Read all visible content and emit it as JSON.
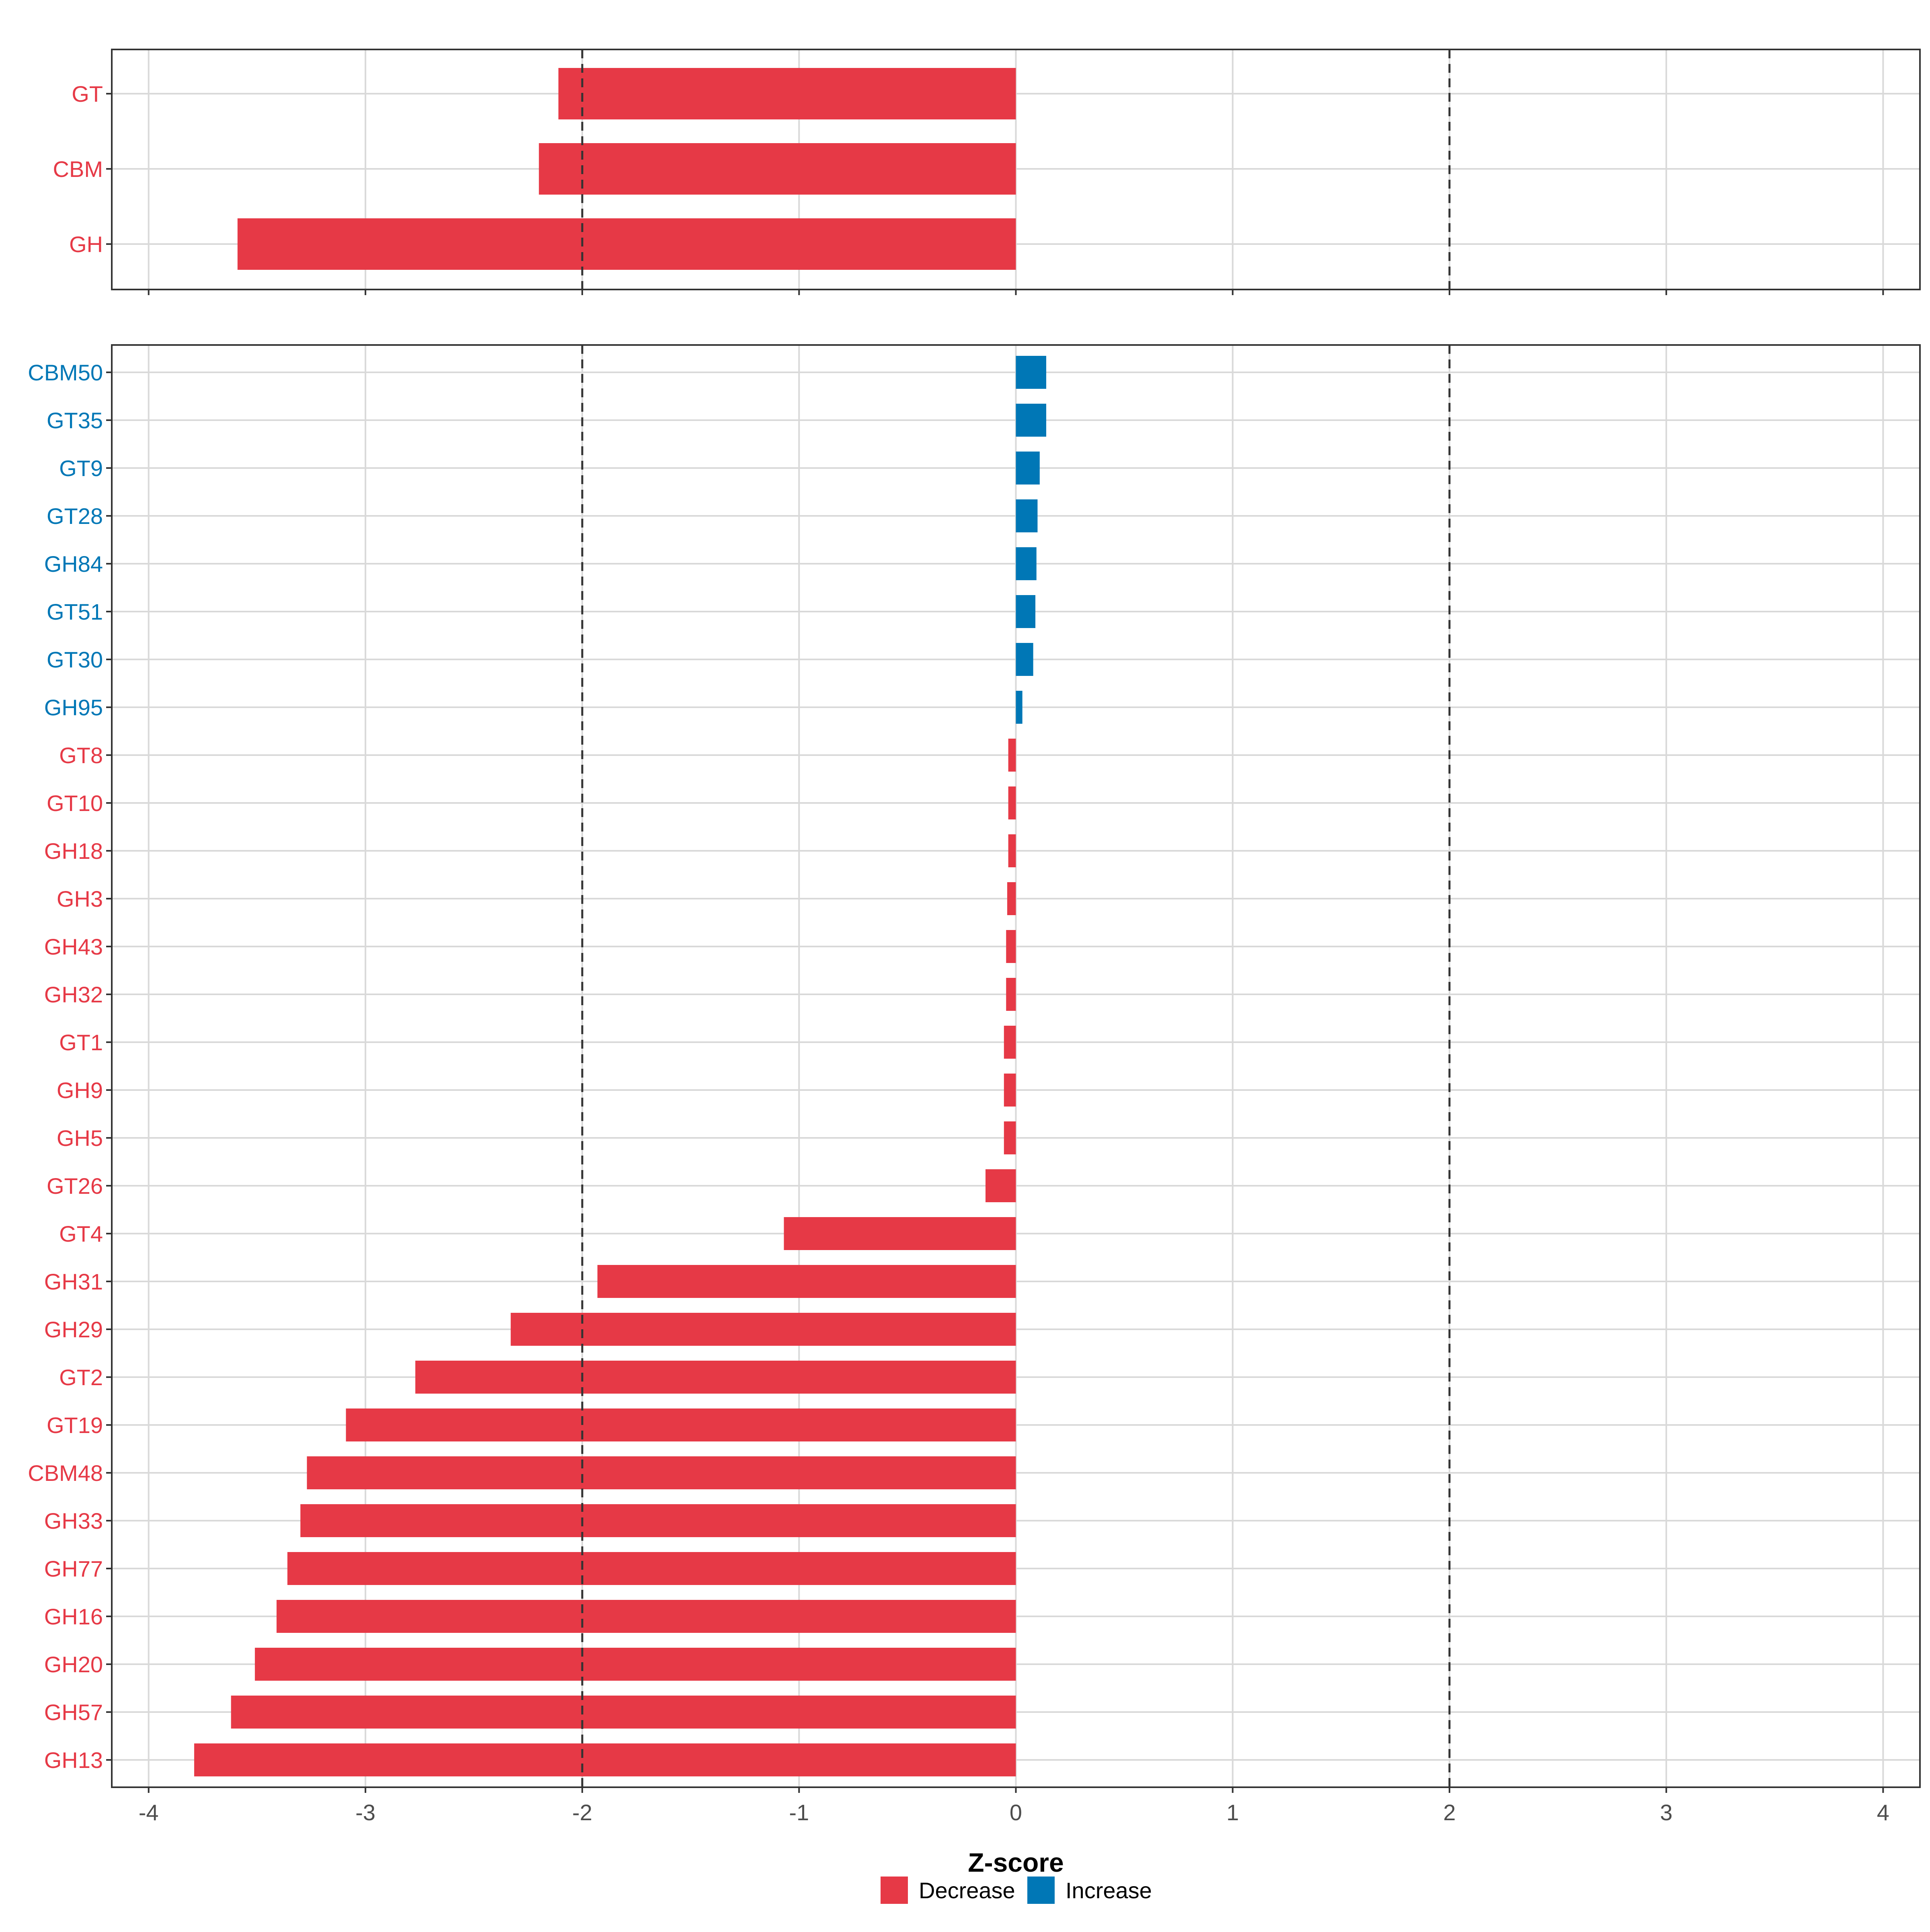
{
  "colors": {
    "decrease": "#E63946",
    "increase": "#0077B6",
    "grid": "#d9d9d9",
    "panel_border": "#333333",
    "threshold_line": "#333333"
  },
  "chart_data": [
    {
      "type": "bar",
      "orientation": "horizontal",
      "panel": "top",
      "categories": [
        "GT",
        "CBM",
        "GH"
      ],
      "values": [
        -2.11,
        -2.2,
        -3.59
      ],
      "direction": [
        "Decrease",
        "Decrease",
        "Decrease"
      ],
      "xlim": [
        -4.17,
        4.17
      ],
      "x_ticks": [
        -4,
        -3,
        -2,
        -1,
        0,
        1,
        2,
        3,
        4
      ],
      "threshold_lines": [
        -2,
        2
      ],
      "grid": true
    },
    {
      "type": "bar",
      "orientation": "horizontal",
      "panel": "bottom",
      "categories": [
        "CBM50",
        "GT35",
        "GT9",
        "GT28",
        "GH84",
        "GT51",
        "GT30",
        "GH95",
        "GT8",
        "GT10",
        "GH18",
        "GH3",
        "GH43",
        "GH32",
        "GT1",
        "GH9",
        "GH5",
        "GT26",
        "GT4",
        "GH31",
        "GH29",
        "GT2",
        "GT19",
        "CBM48",
        "GH33",
        "GH77",
        "GH16",
        "GH20",
        "GH57",
        "GH13"
      ],
      "values": [
        0.14,
        0.14,
        0.11,
        0.1,
        0.095,
        0.09,
        0.08,
        0.03,
        -0.035,
        -0.035,
        -0.035,
        -0.04,
        -0.045,
        -0.045,
        -0.055,
        -0.055,
        -0.055,
        -0.14,
        -1.07,
        -1.93,
        -2.33,
        -2.77,
        -3.09,
        -3.27,
        -3.3,
        -3.36,
        -3.41,
        -3.51,
        -3.62,
        -3.79
      ],
      "direction": [
        "Increase",
        "Increase",
        "Increase",
        "Increase",
        "Increase",
        "Increase",
        "Increase",
        "Increase",
        "Decrease",
        "Decrease",
        "Decrease",
        "Decrease",
        "Decrease",
        "Decrease",
        "Decrease",
        "Decrease",
        "Decrease",
        "Decrease",
        "Decrease",
        "Decrease",
        "Decrease",
        "Decrease",
        "Decrease",
        "Decrease",
        "Decrease",
        "Decrease",
        "Decrease",
        "Decrease",
        "Decrease",
        "Decrease"
      ],
      "xlim": [
        -4.17,
        4.17
      ],
      "x_ticks": [
        -4,
        -3,
        -2,
        -1,
        0,
        1,
        2,
        3,
        4
      ],
      "threshold_lines": [
        -2,
        2
      ],
      "grid": true,
      "xlabel": "Z-score"
    }
  ],
  "legend": {
    "position": "bottom",
    "items": [
      {
        "label": "Decrease",
        "color_key": "decrease"
      },
      {
        "label": "Increase",
        "color_key": "increase"
      }
    ]
  }
}
